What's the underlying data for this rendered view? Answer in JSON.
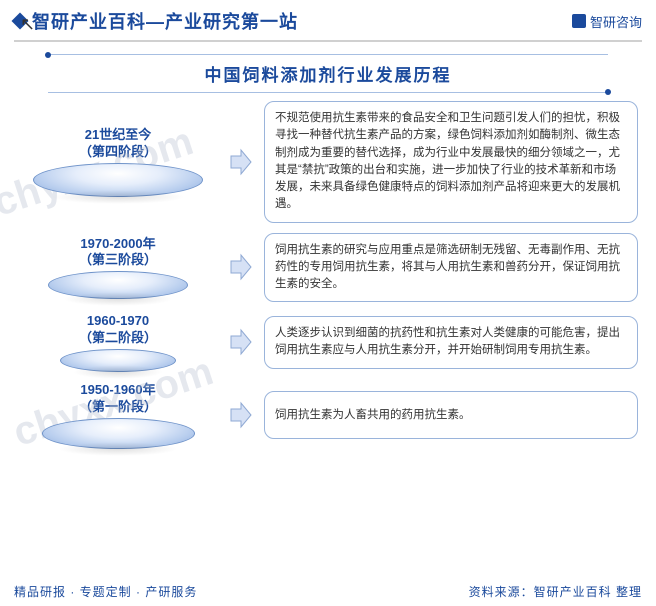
{
  "header": {
    "title": "智研产业百科—产业研究第一站",
    "brand": "智研咨询"
  },
  "chart_title": "中国饲料添加剂行业发展历程",
  "disc_base_gradient": "radial-gradient(ellipse at 50% 30%, #ffffff 0%, #e6eefb 35%, #b7cdee 70%, #8aa9db 100%)",
  "disc_border": "#6f93c9",
  "arrow_fill": "#d6e1f5",
  "arrow_stroke": "#8fa9d4",
  "desc_border": "#9ab4db",
  "stages": [
    {
      "period": "21世纪至今",
      "label": "（第四阶段）",
      "desc": "不规范使用抗生素带来的食品安全和卫生问题引发人们的担忧，积极寻找一种替代抗生素产品的方案，绿色饲料添加剂如酶制剂、微生态制剂成为重要的替代选择，成为行业中发展最快的细分领域之一，尤其是“禁抗”政策的出台和实施，进一步加快了行业的技术革新和市场发展，未来具备绿色健康特点的饲料添加剂产品将迎来更大的发展机遇。",
      "disc_scale": 1.0
    },
    {
      "period": "1970-2000年",
      "label": "（第三阶段）",
      "desc": "饲用抗生素的研究与应用重点是筛选研制无残留、无毒副作用、无抗药性的专用饲用抗生素，将其与人用抗生素和兽药分开，保证饲用抗生素的安全。",
      "disc_scale": 0.82
    },
    {
      "period": "1960-1970",
      "label": "（第二阶段）",
      "desc": "人类逐步认识到细菌的抗药性和抗生素对人类健康的可能危害，提出饲用抗生素应与人用抗生素分开，并开始研制饲用专用抗生素。",
      "disc_scale": 0.68
    },
    {
      "period": "1950-1960年",
      "label": "（第一阶段）",
      "desc": "饲用抗生素为人畜共用的药用抗生素。",
      "disc_scale": 0.9
    }
  ],
  "footer": {
    "left": "精品研报 · 专题定制 · 产研服务",
    "right": "资料来源：智研产业百科 整理"
  },
  "watermarks": [
    "chyxx.com",
    "chyxx.com"
  ]
}
